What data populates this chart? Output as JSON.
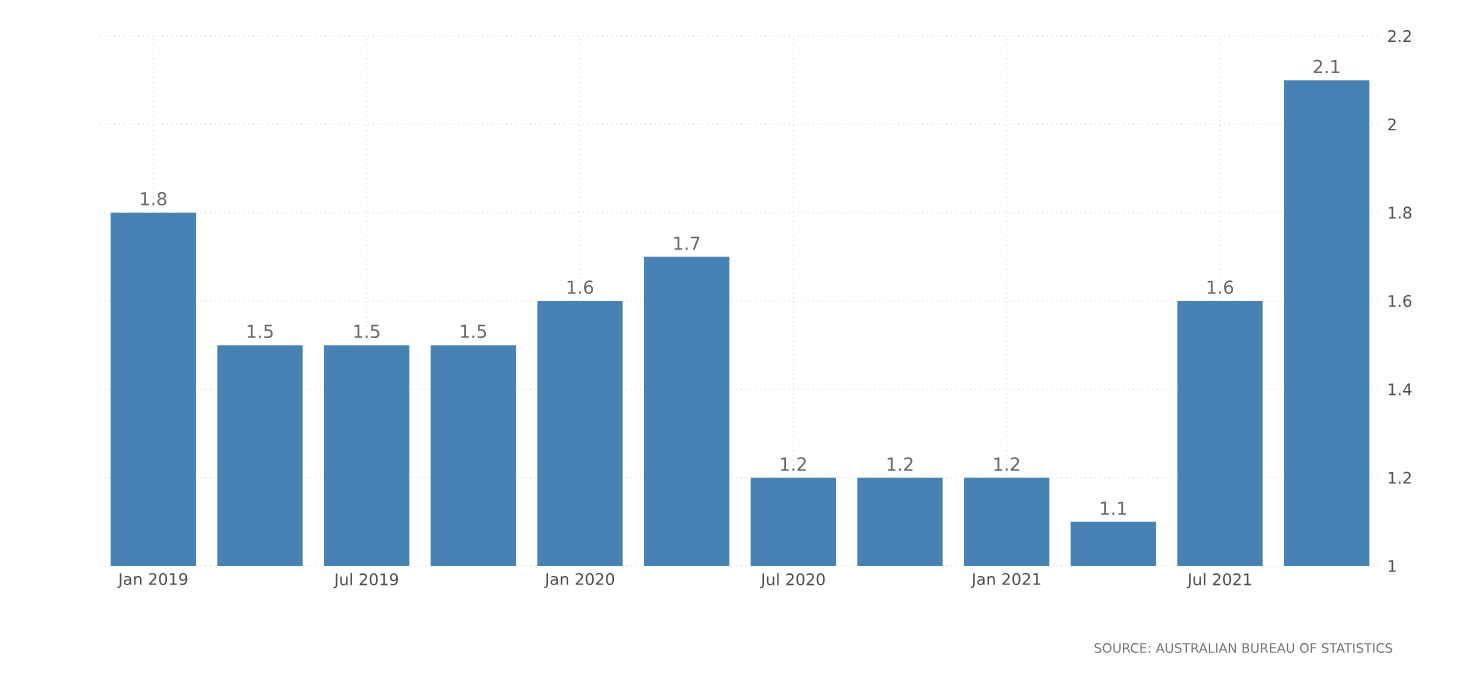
{
  "chart_data": {
    "type": "bar",
    "categories": [
      "Jan 2019",
      null,
      "Jul 2019",
      null,
      "Jan 2020",
      null,
      "Jul 2020",
      null,
      "Jan 2021",
      null,
      "Jul 2021",
      null
    ],
    "values": [
      1.8,
      1.5,
      1.5,
      1.5,
      1.6,
      1.7,
      1.2,
      1.2,
      1.2,
      1.1,
      1.6,
      2.1
    ],
    "color": "#4682b4",
    "ylim": [
      1,
      2.2
    ],
    "yticks": [
      1,
      1.2,
      1.4,
      1.6,
      1.8,
      2,
      2.2
    ],
    "grid": true,
    "data_labels": true,
    "annotations": [
      "SOURCE: AUSTRALIAN BUREAU OF STATISTICS"
    ]
  }
}
